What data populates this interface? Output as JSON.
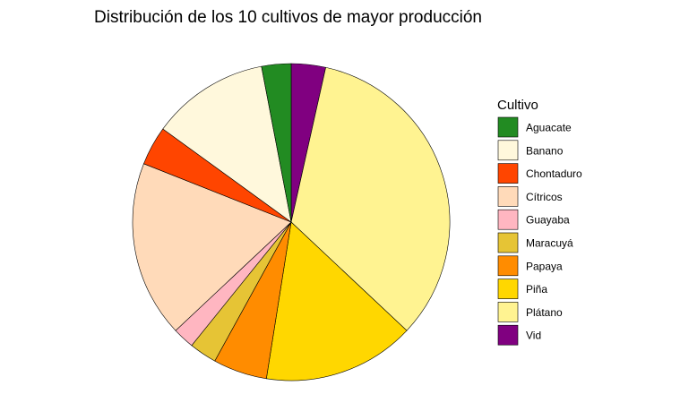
{
  "chart_data": {
    "type": "pie",
    "title": "Distribución de los 10 cultivos de mayor producción",
    "legend_title": "Cultivo",
    "legend_position": "right",
    "start": "top",
    "direction": "clockwise",
    "slice_order": [
      "Vid",
      "Plátano",
      "Piña",
      "Papaya",
      "Maracuyá",
      "Guayaba",
      "Cítricos",
      "Chontaduro",
      "Banano",
      "Aguacate"
    ],
    "categories": [
      "Aguacate",
      "Banano",
      "Chontaduro",
      "Cítricos",
      "Guayaba",
      "Maracuyá",
      "Papaya",
      "Piña",
      "Plátano",
      "Vid"
    ],
    "values": [
      3.0,
      12.0,
      4.0,
      18.0,
      2.2,
      2.8,
      5.5,
      15.5,
      33.5,
      3.5
    ],
    "colors": [
      "#228B22",
      "#FFF8DC",
      "#FF4500",
      "#FFDAB9",
      "#FFB6C1",
      "#E6C435",
      "#FF8C00",
      "#FFD700",
      "#FFF391",
      "#800080"
    ]
  }
}
